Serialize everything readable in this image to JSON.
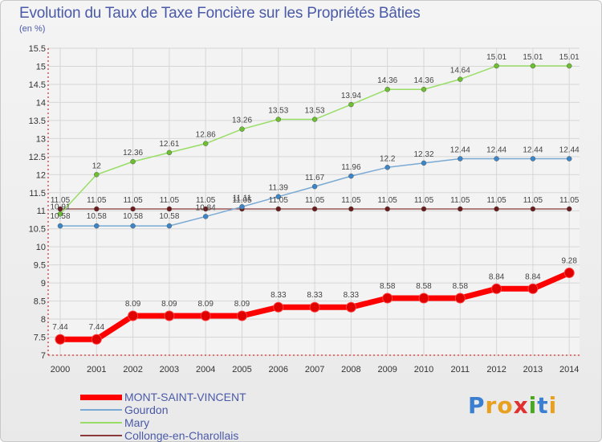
{
  "title": "Evolution du Taux de Taxe Foncière sur les Propriétés Bâties",
  "subtitle": "(en %)",
  "logo": {
    "letters": [
      "P",
      "r",
      "o",
      "x",
      "i",
      "t",
      "i"
    ],
    "colors": [
      "#3a7fd0",
      "#e8a020",
      "#e8a020",
      "#e03030",
      "#4aa820",
      "#3a7fd0",
      "#e8a020"
    ]
  },
  "chart_data": {
    "type": "line",
    "title": "Evolution du Taux de Taxe Foncière sur les Propriétés Bâties",
    "ylabel": "(en %)",
    "xlabel": "",
    "ylim": [
      7,
      15.5
    ],
    "yticks": [
      "7",
      "7.5",
      "8",
      "8.5",
      "9",
      "9.5",
      "10",
      "10.5",
      "11",
      "11.5",
      "12",
      "12.5",
      "13",
      "13.5",
      "14",
      "14.5",
      "15",
      "15.5"
    ],
    "categories": [
      "2000",
      "2001",
      "2002",
      "2003",
      "2004",
      "2005",
      "2006",
      "2007",
      "2008",
      "2009",
      "2010",
      "2011",
      "2012",
      "2013",
      "2014"
    ],
    "grid": true,
    "series": [
      {
        "name": "MONT-SAINT-VINCENT",
        "color": "#ff0000",
        "marker": "#e00000",
        "values": [
          7.44,
          7.44,
          8.09,
          8.09,
          8.09,
          8.09,
          8.33,
          8.33,
          8.33,
          8.58,
          8.58,
          8.58,
          8.84,
          8.84,
          9.28
        ],
        "labels": [
          "7.44",
          "7.44",
          "8.09",
          "8.09",
          "8.09",
          "8.09",
          "8.33",
          "8.33",
          "8.33",
          "8.58",
          "8.58",
          "8.58",
          "8.84",
          "8.84",
          "9.28"
        ]
      },
      {
        "name": "Gourdon",
        "color": "#7aaad4",
        "marker": "#3b86c8",
        "values": [
          10.58,
          10.58,
          10.58,
          10.58,
          10.84,
          11.11,
          11.39,
          11.67,
          11.96,
          12.2,
          12.32,
          12.44,
          12.44,
          12.44,
          12.44
        ],
        "labels": [
          "10.58",
          "10.58",
          "10.58",
          "10.58",
          "10.84",
          "11.11",
          "11.39",
          "11.67",
          "11.96",
          "12.2",
          "12.32",
          "12.44",
          "12.44",
          "12.44",
          "12.44"
        ]
      },
      {
        "name": "Mary",
        "color": "#99dd66",
        "marker": "#6cc030",
        "values": [
          10.91,
          12,
          12.36,
          12.61,
          12.86,
          13.26,
          13.53,
          13.53,
          13.94,
          14.36,
          14.36,
          14.64,
          15.01,
          15.01,
          15.01
        ],
        "labels": [
          "10.91",
          "12",
          "12.36",
          "12.61",
          "12.86",
          "13.26",
          "13.53",
          "13.53",
          "13.94",
          "14.36",
          "14.36",
          "14.64",
          "15.01",
          "15.01",
          "15.01"
        ]
      },
      {
        "name": "Collonge-en-Charollais",
        "color": "#8a3a3a",
        "marker": "#6a1c1c",
        "values": [
          11.05,
          11.05,
          11.05,
          11.05,
          11.05,
          11.05,
          11.05,
          11.05,
          11.05,
          11.05,
          11.05,
          11.05,
          11.05,
          11.05,
          11.05
        ],
        "labels": [
          "11.05",
          "11.05",
          "11.05",
          "11.05",
          "11.05",
          "11.05",
          "11.05",
          "11.05",
          "11.05",
          "11.05",
          "11.05",
          "11.05",
          "11.05",
          "11.05",
          "11.05"
        ]
      }
    ]
  }
}
